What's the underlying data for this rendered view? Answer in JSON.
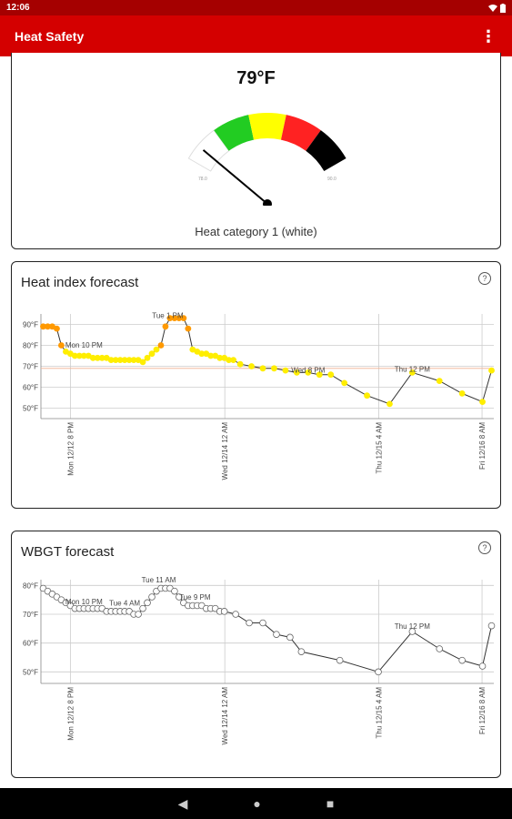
{
  "status_bar": {
    "time": "12:06"
  },
  "app_bar": {
    "title": "Heat Safety",
    "menu_icon": "more-vert-icon"
  },
  "gauge": {
    "temperature": "79°F",
    "category_label": "Heat category 1 (white)",
    "min_label": "78.0",
    "max_label": "90.0",
    "value": 79,
    "min": 78,
    "max": 90,
    "bands": [
      "#ffffff",
      "#22cc22",
      "#ffff00",
      "#ff2222",
      "#000000"
    ]
  },
  "heat_index": {
    "title": "Heat index forecast",
    "help_icon": "help-circle-icon",
    "chart_data": {
      "type": "line",
      "ylim": [
        45,
        95
      ],
      "yticks": [
        "90°F",
        "80°F",
        "70°F",
        "60°F",
        "50°F"
      ],
      "ytick_values": [
        90,
        80,
        70,
        60,
        50
      ],
      "threshold": 69,
      "xlim": [
        0,
        100
      ],
      "xticks": [
        {
          "x": 6.5,
          "label": "Mon 12/12 8 PM"
        },
        {
          "x": 40.6,
          "label": "Wed 12/14 12 AM"
        },
        {
          "x": 74.6,
          "label": "Thu 12/15 4 AM"
        },
        {
          "x": 97.4,
          "label": "Fri 12/16 8 AM"
        }
      ],
      "annotations": [
        {
          "x": 9.5,
          "y": 79,
          "text": "Mon 10 PM"
        },
        {
          "x": 28,
          "y": 93,
          "text": "Tue 1 PM"
        },
        {
          "x": 59,
          "y": 67,
          "text": "Wed 8 PM"
        },
        {
          "x": 82,
          "y": 67.5,
          "text": "Thu 12 PM"
        }
      ],
      "points": [
        {
          "x": 0.5,
          "y": 89,
          "c": "#ff9900"
        },
        {
          "x": 1.5,
          "y": 89,
          "c": "#ff9900"
        },
        {
          "x": 2.5,
          "y": 89,
          "c": "#ff9900"
        },
        {
          "x": 3.5,
          "y": 88,
          "c": "#ff9900"
        },
        {
          "x": 4.5,
          "y": 80,
          "c": "#ff9900"
        },
        {
          "x": 5.5,
          "y": 77,
          "c": "#ffee00"
        },
        {
          "x": 6.5,
          "y": 76,
          "c": "#ffee00"
        },
        {
          "x": 7.5,
          "y": 75,
          "c": "#ffee00"
        },
        {
          "x": 8.5,
          "y": 75,
          "c": "#ffee00"
        },
        {
          "x": 9.5,
          "y": 75,
          "c": "#ffee00"
        },
        {
          "x": 10.5,
          "y": 75,
          "c": "#ffee00"
        },
        {
          "x": 11.5,
          "y": 74,
          "c": "#ffee00"
        },
        {
          "x": 12.5,
          "y": 74,
          "c": "#ffee00"
        },
        {
          "x": 13.5,
          "y": 74,
          "c": "#ffee00"
        },
        {
          "x": 14.5,
          "y": 74,
          "c": "#ffee00"
        },
        {
          "x": 15.5,
          "y": 73,
          "c": "#ffee00"
        },
        {
          "x": 16.5,
          "y": 73,
          "c": "#ffee00"
        },
        {
          "x": 17.5,
          "y": 73,
          "c": "#ffee00"
        },
        {
          "x": 18.5,
          "y": 73,
          "c": "#ffee00"
        },
        {
          "x": 19.5,
          "y": 73,
          "c": "#ffee00"
        },
        {
          "x": 20.5,
          "y": 73,
          "c": "#ffee00"
        },
        {
          "x": 21.5,
          "y": 73,
          "c": "#ffee00"
        },
        {
          "x": 22.5,
          "y": 72,
          "c": "#ffee00"
        },
        {
          "x": 23.5,
          "y": 74,
          "c": "#ffee00"
        },
        {
          "x": 24.5,
          "y": 76,
          "c": "#ffee00"
        },
        {
          "x": 25.5,
          "y": 78,
          "c": "#ffee00"
        },
        {
          "x": 26.5,
          "y": 80,
          "c": "#ff9900"
        },
        {
          "x": 27.5,
          "y": 89,
          "c": "#ff9900"
        },
        {
          "x": 28.5,
          "y": 93,
          "c": "#ff9900"
        },
        {
          "x": 29.5,
          "y": 93,
          "c": "#ff9900"
        },
        {
          "x": 30.5,
          "y": 93,
          "c": "#ff9900"
        },
        {
          "x": 31.5,
          "y": 93,
          "c": "#ff9900"
        },
        {
          "x": 32.5,
          "y": 88,
          "c": "#ff9900"
        },
        {
          "x": 33.5,
          "y": 78,
          "c": "#ffee00"
        },
        {
          "x": 34.5,
          "y": 77,
          "c": "#ffee00"
        },
        {
          "x": 35.5,
          "y": 76,
          "c": "#ffee00"
        },
        {
          "x": 36.5,
          "y": 76,
          "c": "#ffee00"
        },
        {
          "x": 37.5,
          "y": 75,
          "c": "#ffee00"
        },
        {
          "x": 38.5,
          "y": 75,
          "c": "#ffee00"
        },
        {
          "x": 39.5,
          "y": 74,
          "c": "#ffee00"
        },
        {
          "x": 40.5,
          "y": 74,
          "c": "#ffee00"
        },
        {
          "x": 41.5,
          "y": 73,
          "c": "#ffee00"
        },
        {
          "x": 42.5,
          "y": 73,
          "c": "#ffee00"
        },
        {
          "x": 44,
          "y": 71,
          "c": "#ffee00"
        },
        {
          "x": 46.5,
          "y": 70,
          "c": "#ffee00"
        },
        {
          "x": 49,
          "y": 69,
          "c": "#ffee00"
        },
        {
          "x": 51.5,
          "y": 69,
          "c": "#ffee00"
        },
        {
          "x": 54,
          "y": 68,
          "c": "#ffee00"
        },
        {
          "x": 56.5,
          "y": 67,
          "c": "#ffee00"
        },
        {
          "x": 59,
          "y": 67,
          "c": "#ffee00"
        },
        {
          "x": 61.5,
          "y": 66,
          "c": "#ffee00"
        },
        {
          "x": 64,
          "y": 66,
          "c": "#ffee00"
        },
        {
          "x": 67,
          "y": 62,
          "c": "#ffee00"
        },
        {
          "x": 72,
          "y": 56,
          "c": "#ffee00"
        },
        {
          "x": 77,
          "y": 52,
          "c": "#ffee00"
        },
        {
          "x": 82,
          "y": 67,
          "c": "#ffee00"
        },
        {
          "x": 88,
          "y": 63,
          "c": "#ffee00"
        },
        {
          "x": 93,
          "y": 57,
          "c": "#ffee00"
        },
        {
          "x": 97.5,
          "y": 53,
          "c": "#ffee00"
        },
        {
          "x": 99.5,
          "y": 68,
          "c": "#ffee00"
        }
      ]
    }
  },
  "wbgt": {
    "title": "WBGT forecast",
    "help_icon": "help-circle-icon",
    "chart_data": {
      "type": "line",
      "ylim": [
        46,
        82
      ],
      "yticks": [
        "80°F",
        "70°F",
        "60°F",
        "50°F"
      ],
      "ytick_values": [
        80,
        70,
        60,
        50
      ],
      "xlim": [
        0,
        100
      ],
      "xticks": [
        {
          "x": 6.5,
          "label": "Mon 12/12 8 PM"
        },
        {
          "x": 40.6,
          "label": "Wed 12/14 12 AM"
        },
        {
          "x": 74.6,
          "label": "Thu 12/15 4 AM"
        },
        {
          "x": 97.4,
          "label": "Fri 12/16 8 AM"
        }
      ],
      "annotations": [
        {
          "x": 9.5,
          "y": 73.5,
          "text": "Mon 10 PM"
        },
        {
          "x": 18.5,
          "y": 73,
          "text": "Tue 4 AM"
        },
        {
          "x": 26,
          "y": 81,
          "text": "Tue 11 AM"
        },
        {
          "x": 34,
          "y": 75,
          "text": "Tue 9 PM"
        },
        {
          "x": 82,
          "y": 65,
          "text": "Thu 12 PM"
        }
      ],
      "points": [
        {
          "x": 0.5,
          "y": 79
        },
        {
          "x": 1.5,
          "y": 78
        },
        {
          "x": 2.5,
          "y": 77
        },
        {
          "x": 3.5,
          "y": 76
        },
        {
          "x": 4.5,
          "y": 75
        },
        {
          "x": 5.5,
          "y": 74
        },
        {
          "x": 6.5,
          "y": 73
        },
        {
          "x": 7.5,
          "y": 72
        },
        {
          "x": 8.5,
          "y": 72
        },
        {
          "x": 9.5,
          "y": 72
        },
        {
          "x": 10.5,
          "y": 72
        },
        {
          "x": 11.5,
          "y": 72
        },
        {
          "x": 12.5,
          "y": 72
        },
        {
          "x": 13.5,
          "y": 72
        },
        {
          "x": 14.5,
          "y": 71
        },
        {
          "x": 15.5,
          "y": 71
        },
        {
          "x": 16.5,
          "y": 71
        },
        {
          "x": 17.5,
          "y": 71
        },
        {
          "x": 18.5,
          "y": 71
        },
        {
          "x": 19.5,
          "y": 71
        },
        {
          "x": 20.5,
          "y": 70
        },
        {
          "x": 21.5,
          "y": 70
        },
        {
          "x": 22.5,
          "y": 72
        },
        {
          "x": 23.5,
          "y": 74
        },
        {
          "x": 24.5,
          "y": 76
        },
        {
          "x": 25.5,
          "y": 78
        },
        {
          "x": 26.5,
          "y": 79
        },
        {
          "x": 27.5,
          "y": 79
        },
        {
          "x": 28.5,
          "y": 79
        },
        {
          "x": 29.5,
          "y": 78
        },
        {
          "x": 30.5,
          "y": 76
        },
        {
          "x": 31.5,
          "y": 74
        },
        {
          "x": 32.5,
          "y": 73
        },
        {
          "x": 33.5,
          "y": 73
        },
        {
          "x": 34.5,
          "y": 73
        },
        {
          "x": 35.5,
          "y": 73
        },
        {
          "x": 36.5,
          "y": 72
        },
        {
          "x": 37.5,
          "y": 72
        },
        {
          "x": 38.5,
          "y": 72
        },
        {
          "x": 39.5,
          "y": 71
        },
        {
          "x": 40.5,
          "y": 71
        },
        {
          "x": 43,
          "y": 70
        },
        {
          "x": 46,
          "y": 67
        },
        {
          "x": 49,
          "y": 67
        },
        {
          "x": 52,
          "y": 63
        },
        {
          "x": 55,
          "y": 62
        },
        {
          "x": 57.5,
          "y": 57
        },
        {
          "x": 66,
          "y": 54
        },
        {
          "x": 74.5,
          "y": 50
        },
        {
          "x": 82,
          "y": 64
        },
        {
          "x": 88,
          "y": 58
        },
        {
          "x": 93,
          "y": 54
        },
        {
          "x": 97.5,
          "y": 52
        },
        {
          "x": 99.5,
          "y": 66
        }
      ]
    }
  },
  "nav": {
    "back": "◀",
    "home": "●",
    "recents": "■"
  }
}
